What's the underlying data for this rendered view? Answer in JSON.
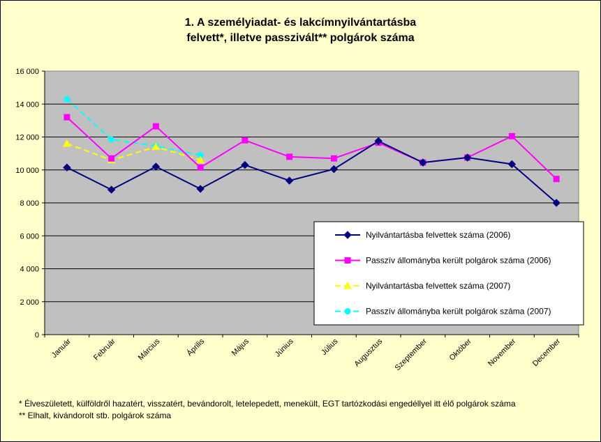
{
  "chart_data": {
    "type": "line",
    "title_line1": "1. A személyiadat- és lakcímnyilvántartásba",
    "title_line2": "felvett*, illetve passzivált** polgárok száma",
    "categories": [
      "Január",
      "Február",
      "Március",
      "Április",
      "Május",
      "Június",
      "Július",
      "Augusztus",
      "Szeptember",
      "Október",
      "November",
      "December"
    ],
    "ylim": [
      0,
      16000
    ],
    "yticks": [
      0,
      2000,
      4000,
      6000,
      8000,
      10000,
      12000,
      14000,
      16000
    ],
    "ytick_labels": [
      "0",
      "2 000",
      "4 000",
      "6 000",
      "8 000",
      "10 000",
      "12 000",
      "14 000",
      "16 000"
    ],
    "grid": true,
    "legend_position": "bottom-right",
    "series": [
      {
        "name": "Nyilvántartásba felvettek száma (2006)",
        "color": "#000080",
        "marker": "diamond",
        "dash": false,
        "values": [
          10150,
          8800,
          10200,
          8850,
          10300,
          9350,
          10050,
          11750,
          10450,
          10750,
          10350,
          8000
        ]
      },
      {
        "name": "Passzív állományba került polgárok száma (2006)",
        "color": "#ff00ff",
        "marker": "square",
        "dash": false,
        "values": [
          13200,
          10700,
          12650,
          10150,
          11800,
          10800,
          10700,
          11650,
          10450,
          10750,
          12050,
          9450
        ]
      },
      {
        "name": "Nyilvántartásba felvettek száma (2007)",
        "color": "#ffff00",
        "marker": "triangle",
        "dash": true,
        "values": [
          11600,
          10600,
          11400,
          10600,
          null,
          null,
          null,
          null,
          null,
          null,
          null,
          null
        ]
      },
      {
        "name": "Passzív állományba került polgárok száma (2007)",
        "color": "#00ffff",
        "marker": "circle",
        "dash": true,
        "values": [
          14300,
          11850,
          11450,
          10900,
          null,
          null,
          null,
          null,
          null,
          null,
          null,
          null
        ]
      }
    ]
  },
  "footnotes": {
    "line1": "* Élveszületett, külföldről hazatért, visszatért, bevándorolt, letelepedett, menekült, EGT tartózkodási engedéllyel itt élő  polgárok száma",
    "line2": "** Elhalt, kivándorolt stb. polgárok száma"
  }
}
